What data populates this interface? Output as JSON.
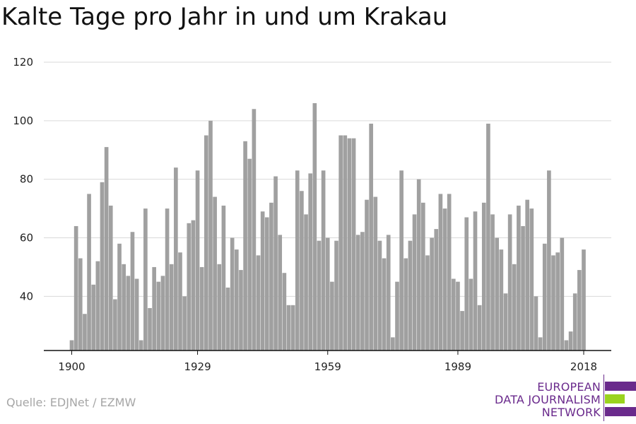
{
  "title": "Kalte Tage pro Jahr in und um Krakau",
  "source": "Quelle: EDJNet / EZMW",
  "logo": {
    "line1": "EUROPEAN",
    "line2": "DATA JOURNALISM",
    "line3": "NETWORK",
    "colors": {
      "purple": "#6a2a8c",
      "green": "#9ad31e"
    }
  },
  "colors": {
    "bar": "#a0a0a0",
    "grid": "#d9d9d9",
    "axis": "#111111"
  },
  "chart_data": {
    "type": "bar",
    "title": "Kalte Tage pro Jahr in und um Krakau",
    "xlabel": "",
    "ylabel": "",
    "ylim": [
      21.5,
      120
    ],
    "yticks": [
      40,
      60,
      80,
      100,
      120
    ],
    "xticks": [
      1900,
      1929,
      1959,
      1989,
      2018
    ],
    "grid": true,
    "x": [
      1900,
      1901,
      1902,
      1903,
      1904,
      1905,
      1906,
      1907,
      1908,
      1909,
      1910,
      1911,
      1912,
      1913,
      1914,
      1915,
      1916,
      1917,
      1918,
      1919,
      1920,
      1921,
      1922,
      1923,
      1924,
      1925,
      1926,
      1927,
      1928,
      1929,
      1930,
      1931,
      1932,
      1933,
      1934,
      1935,
      1936,
      1937,
      1938,
      1939,
      1940,
      1941,
      1942,
      1943,
      1944,
      1945,
      1946,
      1947,
      1948,
      1949,
      1950,
      1951,
      1952,
      1953,
      1954,
      1955,
      1956,
      1957,
      1958,
      1959,
      1960,
      1961,
      1962,
      1963,
      1964,
      1965,
      1966,
      1967,
      1968,
      1969,
      1970,
      1971,
      1972,
      1973,
      1974,
      1975,
      1976,
      1977,
      1978,
      1979,
      1980,
      1981,
      1982,
      1983,
      1984,
      1985,
      1986,
      1987,
      1988,
      1989,
      1990,
      1991,
      1992,
      1993,
      1994,
      1995,
      1996,
      1997,
      1998,
      1999,
      2000,
      2001,
      2002,
      2003,
      2004,
      2005,
      2006,
      2007,
      2008,
      2009,
      2010,
      2011,
      2012,
      2013,
      2014,
      2015,
      2016,
      2017,
      2018
    ],
    "values": [
      25,
      64,
      53,
      34,
      75,
      44,
      52,
      79,
      91,
      71,
      39,
      58,
      51,
      47,
      62,
      46,
      25,
      70,
      36,
      50,
      45,
      47,
      70,
      51,
      84,
      55,
      40,
      65,
      66,
      83,
      50,
      95,
      100,
      74,
      51,
      71,
      43,
      60,
      56,
      49,
      93,
      87,
      104,
      54,
      69,
      67,
      72,
      81,
      61,
      48,
      37,
      37,
      83,
      76,
      68,
      82,
      106,
      59,
      83,
      60,
      45,
      59,
      95,
      95,
      94,
      94,
      61,
      62,
      73,
      99,
      74,
      59,
      53,
      61,
      26,
      45,
      83,
      53,
      59,
      68,
      80,
      72,
      54,
      60,
      63,
      75,
      70,
      75,
      46,
      45,
      35,
      67,
      46,
      69,
      37,
      72,
      99,
      68,
      60,
      56,
      41,
      68,
      51,
      71,
      64,
      73,
      70,
      40,
      26,
      58,
      83,
      54,
      55,
      60,
      25,
      28,
      41,
      49,
      56
    ]
  }
}
